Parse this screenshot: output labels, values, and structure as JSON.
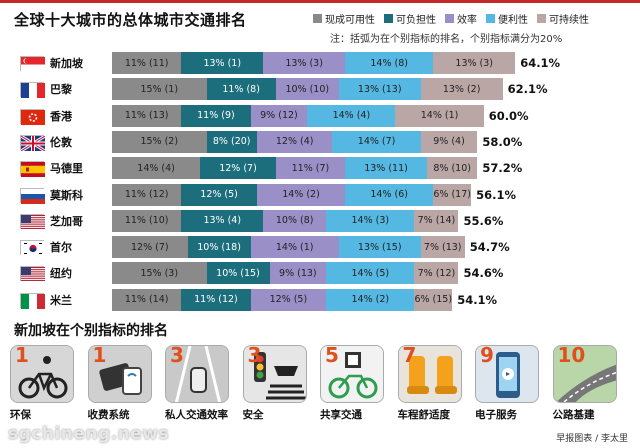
{
  "title": "全球十大城市的总体城市交通排名",
  "note": "注：括弧为在个别指标的排名，个别指标满分为20%",
  "colors": {
    "availability": "#8a8a8a",
    "affordability": "#1c6e7c",
    "efficiency": "#9b8fc7",
    "convenience": "#54b8e3",
    "sustainability": "#bba6a6"
  },
  "chart_data": {
    "type": "bar",
    "orientation": "horizontal",
    "stacked": true,
    "title": "全球十大城市的总体城市交通排名",
    "legend": [
      {
        "name": "现成可用性",
        "key": "availability"
      },
      {
        "name": "可负担性",
        "key": "affordability"
      },
      {
        "name": "效率",
        "key": "efficiency"
      },
      {
        "name": "便利性",
        "key": "convenience"
      },
      {
        "name": "可持续性",
        "key": "sustainability"
      }
    ],
    "categories": [
      "新加坡",
      "巴黎",
      "香港",
      "伦敦",
      "马德里",
      "莫斯科",
      "芝加哥",
      "首尔",
      "纽约",
      "米兰"
    ],
    "totals": [
      "64.1%",
      "62.1%",
      "60.0%",
      "58.0%",
      "57.2%",
      "56.1%",
      "55.6%",
      "54.7%",
      "54.6%",
      "54.1%"
    ],
    "series": [
      {
        "name": "现成可用性",
        "values": [
          11,
          15,
          11,
          15,
          14,
          11,
          11,
          12,
          15,
          11
        ],
        "labels": [
          "11% (11)",
          "15% (1)",
          "11% (13)",
          "15% (2)",
          "14% (4)",
          "11% (12)",
          "11% (10)",
          "12% (7)",
          "15% (3)",
          "11% (14)"
        ]
      },
      {
        "name": "可负担性",
        "values": [
          13,
          11,
          11,
          8,
          12,
          12,
          13,
          10,
          10,
          11
        ],
        "labels": [
          "13% (1)",
          "11% (8)",
          "11% (9)",
          "8% (20)",
          "12% (7)",
          "12% (5)",
          "13% (4)",
          "10% (18)",
          "10% (15)",
          "11% (12)"
        ]
      },
      {
        "name": "效率",
        "values": [
          13,
          10,
          9,
          12,
          11,
          14,
          10,
          14,
          9,
          12
        ],
        "labels": [
          "13% (3)",
          "10% (10)",
          "9% (12)",
          "12% (4)",
          "11% (7)",
          "14% (2)",
          "10% (8)",
          "14% (1)",
          "9% (13)",
          "12% (5)"
        ]
      },
      {
        "name": "便利性",
        "values": [
          14,
          13,
          14,
          14,
          13,
          14,
          14,
          13,
          14,
          14
        ],
        "labels": [
          "14% (8)",
          "13% (13)",
          "14% (4)",
          "14% (7)",
          "13% (11)",
          "14% (6)",
          "14% (3)",
          "13% (15)",
          "14% (5)",
          "14% (2)"
        ]
      },
      {
        "name": "可持续性",
        "values": [
          13,
          13,
          14,
          9,
          8,
          6,
          7,
          7,
          7,
          6
        ],
        "labels": [
          "13% (3)",
          "13% (2)",
          "14% (1)",
          "9% (4)",
          "8% (10)",
          "6% (17)",
          "7% (14)",
          "7% (13)",
          "7% (12)",
          "6% (15)"
        ]
      }
    ],
    "xlim": [
      0,
      100
    ]
  },
  "flags": [
    "sg",
    "fr",
    "hk",
    "gb",
    "es",
    "ru",
    "us",
    "kr",
    "us",
    "it"
  ],
  "subtitle": "新加坡在个别指标的排名",
  "indicators": [
    {
      "rank": "1",
      "label": "环保",
      "icon": "bicycle-icon"
    },
    {
      "rank": "1",
      "label": "收费系统",
      "icon": "card-payment-icon"
    },
    {
      "rank": "3",
      "label": "私人交通效率",
      "icon": "car-road-icon"
    },
    {
      "rank": "3",
      "label": "安全",
      "icon": "traffic-light-icon"
    },
    {
      "rank": "5",
      "label": "共享交通",
      "icon": "shared-bike-icon"
    },
    {
      "rank": "7",
      "label": "车程舒适度",
      "icon": "bus-seat-icon"
    },
    {
      "rank": "9",
      "label": "电子服务",
      "icon": "phone-app-icon"
    },
    {
      "rank": "10",
      "label": "公路基建",
      "icon": "highway-icon"
    }
  ],
  "credit": "早报图表 / 李太里",
  "watermark": "sgchineng.news"
}
